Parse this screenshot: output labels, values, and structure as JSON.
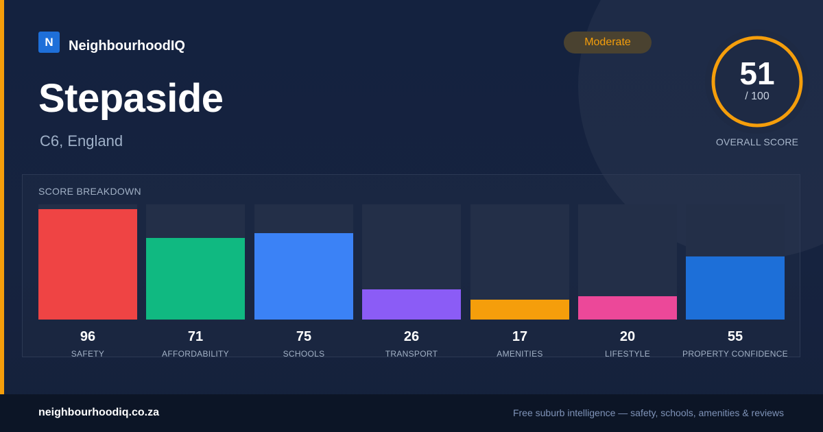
{
  "brand": {
    "logo_letter": "N",
    "name": "NeighbourhoodIQ"
  },
  "suburb": {
    "name": "Stepaside",
    "location": "C6, England"
  },
  "badge": {
    "label": "Moderate",
    "color": "#f59e0b"
  },
  "overall": {
    "score": "51",
    "max": "/ 100",
    "fraction": 0.51,
    "label": "OVERALL SCORE",
    "ring_color": "#f59e0b"
  },
  "breakdown": {
    "title": "SCORE BREAKDOWN",
    "items": [
      {
        "value": "96",
        "label": "SAFETY",
        "color": "#ef4444"
      },
      {
        "value": "71",
        "label": "AFFORDABILITY",
        "color": "#10b981"
      },
      {
        "value": "75",
        "label": "SCHOOLS",
        "color": "#3b82f6"
      },
      {
        "value": "26",
        "label": "TRANSPORT",
        "color": "#8b5cf6"
      },
      {
        "value": "17",
        "label": "AMENITIES",
        "color": "#f59e0b"
      },
      {
        "value": "20",
        "label": "LIFESTYLE",
        "color": "#ec4899"
      },
      {
        "value": "55",
        "label": "PROPERTY CONFIDENCE",
        "color": "#1d6fd8"
      }
    ]
  },
  "footer": {
    "url": "neighbourhoodiq.co.za",
    "tagline": "Free suburb intelligence — safety, schools, amenities & reviews"
  }
}
